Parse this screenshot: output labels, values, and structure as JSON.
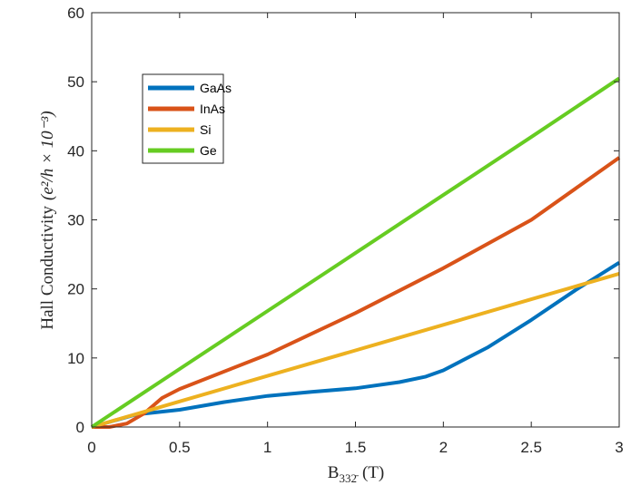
{
  "chart_data": {
    "type": "line",
    "title": "",
    "xlabel": "B",
    "xlabel_subscript": "332̄",
    "xlabel_unit": "(T)",
    "ylabel": "Hall Conductivity",
    "ylabel_unit": "(e²/h × 10⁻³)",
    "xlim": [
      0,
      3
    ],
    "ylim": [
      0,
      60
    ],
    "xticks": [
      0,
      0.5,
      1,
      1.5,
      2,
      2.5,
      3
    ],
    "xtick_labels": [
      "0",
      "0.5",
      "1",
      "1.5",
      "2",
      "2.5",
      "3"
    ],
    "yticks": [
      0,
      10,
      20,
      30,
      40,
      50,
      60
    ],
    "ytick_labels": [
      "0",
      "10",
      "20",
      "30",
      "40",
      "50",
      "60"
    ],
    "grid": false,
    "legend_position": "top-left",
    "series": [
      {
        "name": "GaAs",
        "color": "#0072BD",
        "x": [
          0,
          0.25,
          0.5,
          0.75,
          1,
          1.25,
          1.5,
          1.75,
          1.9,
          2,
          2.25,
          2.5,
          2.75,
          3
        ],
        "y": [
          0,
          1.8,
          2.5,
          3.6,
          4.5,
          5.1,
          5.6,
          6.5,
          7.3,
          8.2,
          11.5,
          15.5,
          19.8,
          23.8
        ]
      },
      {
        "name": "InAs",
        "color": "#D95319",
        "x": [
          0,
          0.1,
          0.2,
          0.3,
          0.4,
          0.5,
          1,
          1.5,
          2,
          2.5,
          3
        ],
        "y": [
          0,
          0,
          0.5,
          2,
          4.2,
          5.5,
          10.5,
          16.5,
          23,
          30,
          39
        ]
      },
      {
        "name": "Si",
        "color": "#EDB120",
        "x": [
          0,
          0.5,
          1,
          1.5,
          2,
          2.5,
          3
        ],
        "y": [
          0,
          3.7,
          7.4,
          11.1,
          14.8,
          18.5,
          22.2
        ]
      },
      {
        "name": "Ge",
        "color": "#66CC22",
        "x": [
          0,
          0.5,
          1,
          1.5,
          2,
          2.5,
          3
        ],
        "y": [
          0,
          8.4,
          16.8,
          25.2,
          33.6,
          42,
          50.5
        ]
      }
    ]
  }
}
